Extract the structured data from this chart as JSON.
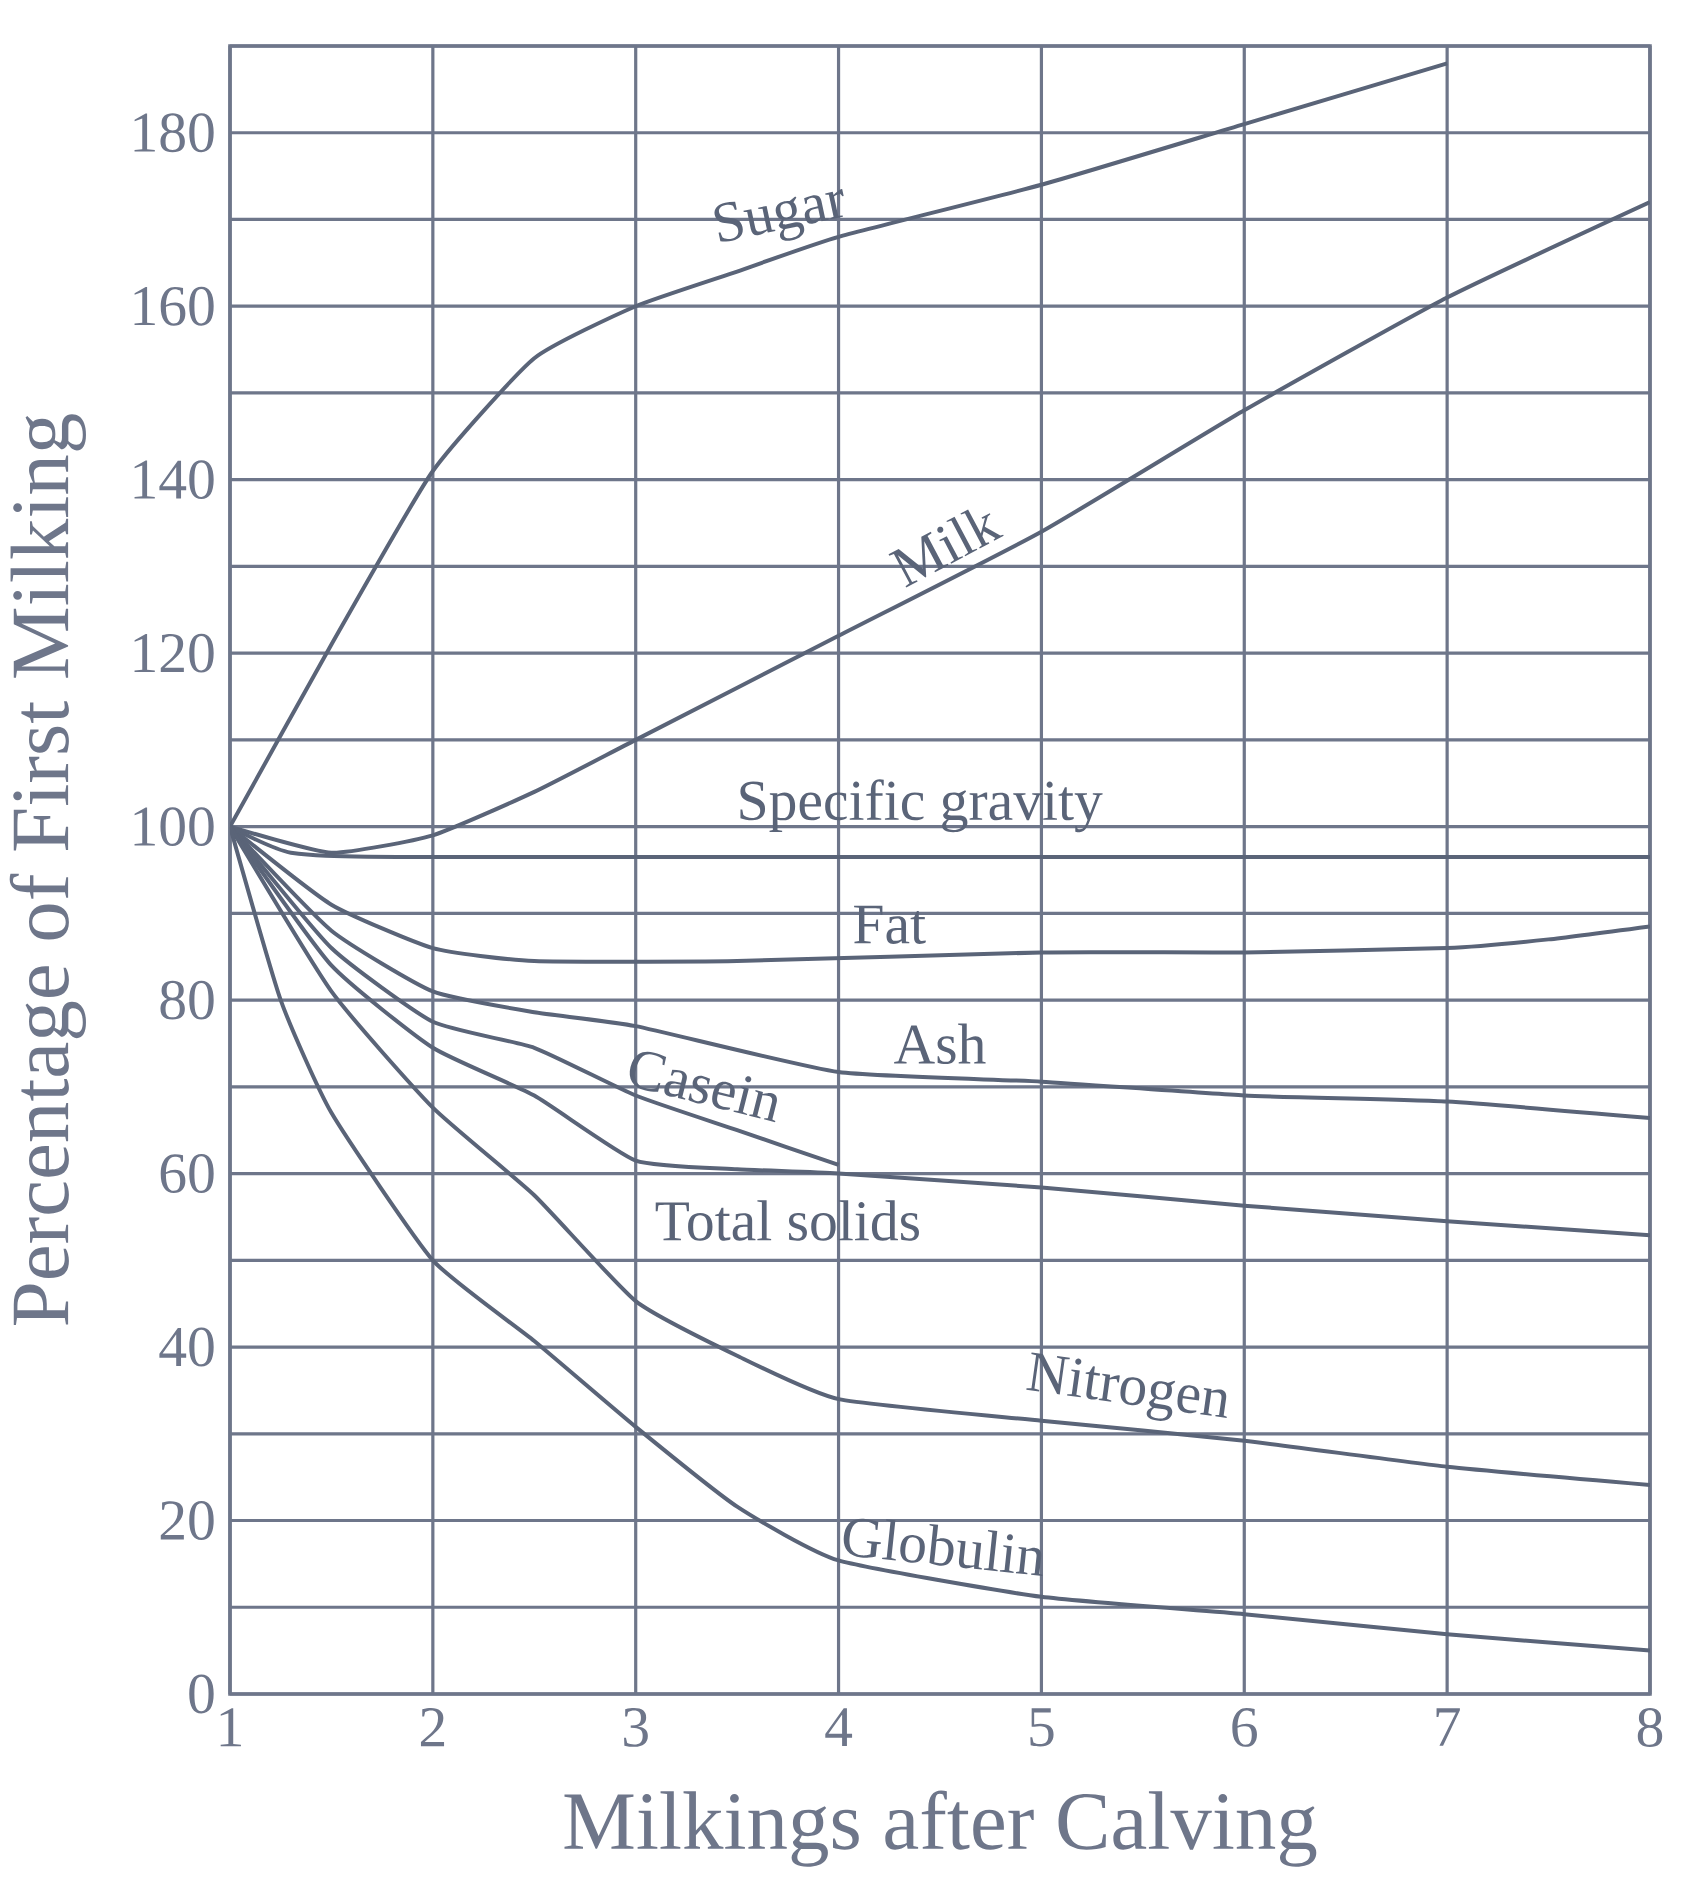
{
  "chart_data": {
    "type": "line",
    "xlabel": "Milkings after Calving",
    "ylabel": "Percentage of First Milking",
    "xlim": [
      1,
      8
    ],
    "ylim": [
      0,
      190
    ],
    "xticks": [
      {
        "value": 1,
        "label": "1"
      },
      2,
      3,
      4,
      5,
      6,
      7,
      8
    ],
    "yticks": [
      0,
      {
        "value": 10,
        "label": null
      },
      20,
      {
        "value": 30,
        "label": null
      },
      40,
      {
        "value": 50,
        "label": null
      },
      60,
      {
        "value": 70,
        "label": null
      },
      80,
      {
        "value": 90,
        "label": null
      },
      100,
      {
        "value": 110,
        "label": null
      },
      120,
      {
        "value": 130,
        "label": null
      },
      140,
      {
        "value": 150,
        "label": null
      },
      160,
      {
        "value": 170,
        "label": null
      },
      180,
      {
        "value": 190,
        "label": null
      }
    ],
    "grid": true,
    "marker": "none",
    "line_style": "solid",
    "series": [
      {
        "name": "Sugar",
        "color": "#5a6478",
        "x": [
          1,
          1.5,
          2,
          2.5,
          3,
          3.5,
          4,
          5,
          6,
          7
        ],
        "values": [
          100,
          121,
          141,
          154,
          160,
          164,
          168,
          174,
          181,
          188
        ]
      },
      {
        "name": "Milk",
        "color": "#5a6478",
        "x": [
          1,
          1.5,
          2,
          2.5,
          3,
          4,
          5,
          6,
          7,
          8
        ],
        "values": [
          100,
          97,
          99,
          104,
          110,
          122,
          134,
          148,
          161,
          172
        ]
      },
      {
        "name": "Specific gravity",
        "color": "#5a6478",
        "x": [
          1,
          1.3,
          2,
          8
        ],
        "values": [
          100,
          97,
          96.5,
          96.5
        ]
      },
      {
        "name": "Fat",
        "color": "#5a6478",
        "x": [
          1,
          1.5,
          2,
          2.5,
          3.5,
          5,
          6,
          7,
          7.5,
          8
        ],
        "values": [
          100,
          91,
          86,
          84.5,
          84.5,
          85.5,
          85.5,
          86,
          87,
          88.5
        ]
      },
      {
        "name": "Ash",
        "color": "#5a6478",
        "x": [
          1,
          1.5,
          2,
          2.5,
          3,
          4,
          5,
          6,
          7,
          8
        ],
        "values": [
          100,
          88,
          81,
          78.6,
          77,
          71.7,
          70.6,
          69,
          68.3,
          66.4
        ]
      },
      {
        "name": "Casein",
        "color": "#5a6478",
        "x": [
          1,
          1.5,
          2,
          2.5,
          3,
          3.5,
          4
        ],
        "values": [
          100,
          86,
          77.5,
          74.5,
          69,
          65,
          61
        ]
      },
      {
        "name": "Total solids",
        "color": "#5a6478",
        "x": [
          1,
          1.5,
          2,
          2.5,
          3,
          3.5,
          4,
          5,
          6,
          7,
          8
        ],
        "values": [
          100,
          84,
          74.5,
          69,
          61.5,
          60.5,
          60,
          58.4,
          56.3,
          54.5,
          52.9
        ]
      },
      {
        "name": "Nitrogen",
        "color": "#5a6478",
        "x": [
          1,
          1.5,
          2,
          2.5,
          3,
          3.5,
          4,
          5,
          6,
          7,
          8
        ],
        "values": [
          100,
          81,
          67.6,
          57.5,
          45.3,
          39,
          34,
          31.5,
          29.2,
          26.2,
          24.1
        ]
      },
      {
        "name": "Globulin",
        "color": "#5a6478",
        "x": [
          1,
          1.25,
          1.5,
          2,
          2.5,
          3,
          3.5,
          4,
          5,
          6,
          7,
          8
        ],
        "values": [
          100,
          80,
          67,
          50,
          40.7,
          30.8,
          21.6,
          15.4,
          11.2,
          9.2,
          6.9,
          5
        ]
      }
    ]
  }
}
